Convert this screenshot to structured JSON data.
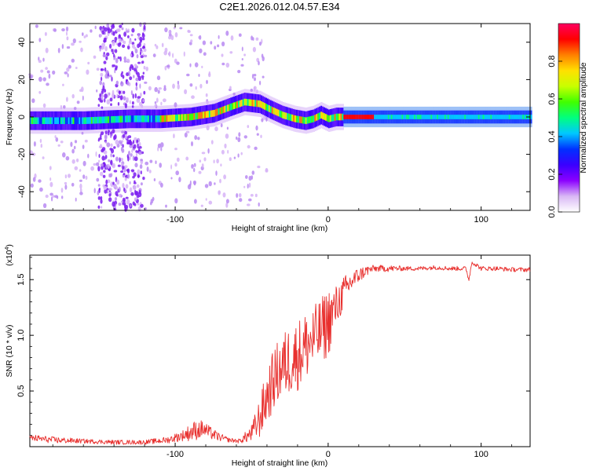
{
  "figure": {
    "title": "C2E1.2026.012.04.57.E34"
  },
  "chart_data": [
    {
      "type": "heatmap",
      "title": "C2E1.2026.012.04.57.E34",
      "xlabel": "Height of straight line (km)",
      "ylabel": "Frequency (Hz)",
      "xlim": [
        -195,
        132
      ],
      "ylim": [
        -50,
        50
      ],
      "xticks": [
        -100,
        0,
        100
      ],
      "yticks": [
        -40,
        -20,
        0,
        20,
        40
      ],
      "xtick_labels": [
        "-100",
        "0",
        "100"
      ],
      "ytick_labels": [
        "-40",
        "-20",
        "0",
        "20",
        "40"
      ],
      "ridge_frequency": {
        "x": [
          -195,
          -160,
          -130,
          -110,
          -90,
          -75,
          -62,
          -55,
          -45,
          -38,
          -30,
          -22,
          -15,
          -10,
          -5,
          0,
          5,
          10,
          30,
          60,
          90,
          132
        ],
        "y": [
          -2,
          -2,
          -1,
          -1,
          0,
          2,
          6,
          8,
          7,
          4,
          1,
          -1,
          -2,
          -1,
          1,
          -1,
          0,
          0,
          0,
          0,
          0,
          0
        ]
      },
      "colorbar": {
        "label": "Normalized spectral amplitude",
        "range": [
          0,
          1
        ],
        "ticks": [
          0.0,
          0.2,
          0.4,
          0.6,
          0.8
        ],
        "tick_labels": [
          "0.0",
          "0.2",
          "0.4",
          "0.6",
          "0.8"
        ],
        "colormap": [
          "#ffffff",
          "#d9b8f5",
          "#8b00ff",
          "#3a00ff",
          "#0030ff",
          "#00c8ff",
          "#00ff7f",
          "#40ff00",
          "#c8ff00",
          "#ffe000",
          "#ff8000",
          "#ff0000",
          "#ff0060"
        ]
      }
    },
    {
      "type": "line",
      "xlabel": "Height of straight line (km)",
      "ylabel": "SNR (10 * v/v)",
      "y_multiplier": "(x10^4)",
      "y_multiplier_base": "(x10",
      "y_multiplier_exp": "4",
      "y_multiplier_close": ")",
      "xlim": [
        -195,
        132
      ],
      "ylim": [
        0,
        1.72
      ],
      "xticks": [
        -100,
        0,
        100
      ],
      "yticks": [
        0.5,
        1.0,
        1.5
      ],
      "xtick_labels": [
        "-100",
        "0",
        "100"
      ],
      "ytick_labels": [
        "0.5",
        "1.0",
        "1.5"
      ],
      "color": "#e8302e",
      "series": [
        {
          "name": "SNR",
          "x": [
            -195,
            -180,
            -160,
            -140,
            -120,
            -105,
            -95,
            -88,
            -82,
            -78,
            -72,
            -65,
            -58,
            -50,
            -45,
            -40,
            -35,
            -30,
            -25,
            -20,
            -15,
            -10,
            -5,
            0,
            5,
            10,
            15,
            20,
            25,
            30,
            40,
            50,
            60,
            70,
            80,
            90,
            92,
            94,
            100,
            110,
            120,
            132
          ],
          "values": [
            0.08,
            0.06,
            0.05,
            0.04,
            0.04,
            0.06,
            0.1,
            0.14,
            0.16,
            0.13,
            0.09,
            0.06,
            0.05,
            0.12,
            0.25,
            0.45,
            0.62,
            0.72,
            0.78,
            0.82,
            0.9,
            0.96,
            1.03,
            1.12,
            1.25,
            1.38,
            1.48,
            1.54,
            1.58,
            1.6,
            1.6,
            1.6,
            1.6,
            1.61,
            1.6,
            1.6,
            1.5,
            1.66,
            1.6,
            1.6,
            1.59,
            1.59
          ],
          "noise_amplitude": [
            0.03,
            0.03,
            0.02,
            0.02,
            0.02,
            0.03,
            0.05,
            0.09,
            0.08,
            0.06,
            0.04,
            0.02,
            0.02,
            0.08,
            0.18,
            0.25,
            0.28,
            0.3,
            0.32,
            0.32,
            0.32,
            0.3,
            0.3,
            0.32,
            0.2,
            0.15,
            0.1,
            0.07,
            0.05,
            0.03,
            0.03,
            0.02,
            0.02,
            0.02,
            0.02,
            0.02,
            0.02,
            0.02,
            0.02,
            0.02,
            0.02,
            0.02
          ]
        }
      ]
    }
  ]
}
